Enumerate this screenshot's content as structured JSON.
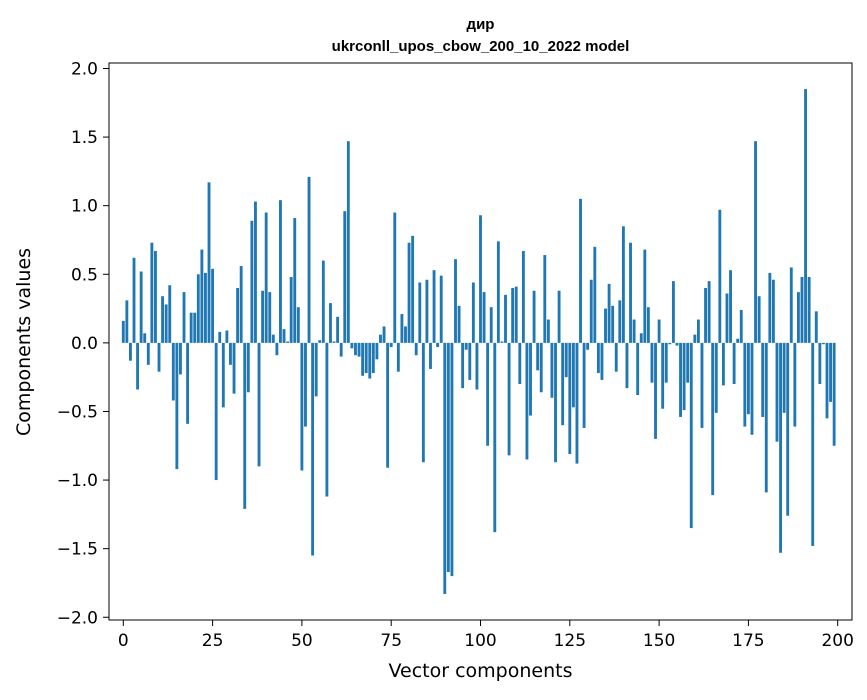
{
  "chart_data": {
    "type": "bar",
    "title": "дир",
    "subtitle": "ukrconll_upos_cbow_200_10_2022 model",
    "xlabel": "Vector components",
    "ylabel": "Components values",
    "xlim": [
      -4,
      204
    ],
    "ylim": [
      -2.02,
      2.04
    ],
    "xticks": [
      0,
      25,
      50,
      75,
      100,
      125,
      150,
      175,
      200
    ],
    "yticks": [
      -2.0,
      -1.5,
      -1.0,
      -0.5,
      0.0,
      0.5,
      1.0,
      1.5,
      2.0
    ],
    "xtick_labels": [
      "0",
      "25",
      "50",
      "75",
      "100",
      "125",
      "150",
      "175",
      "200"
    ],
    "ytick_labels": [
      "−2.0",
      "−1.5",
      "−1.0",
      "−0.5",
      "0.0",
      "0.5",
      "1.0",
      "1.5",
      "2.0"
    ],
    "grid": false,
    "bar_color": "#1f77b4",
    "x": [
      0,
      1,
      2,
      3,
      4,
      5,
      6,
      7,
      8,
      9,
      10,
      11,
      12,
      13,
      14,
      15,
      16,
      17,
      18,
      19,
      20,
      21,
      22,
      23,
      24,
      25,
      26,
      27,
      28,
      29,
      30,
      31,
      32,
      33,
      34,
      35,
      36,
      37,
      38,
      39,
      40,
      41,
      42,
      43,
      44,
      45,
      46,
      47,
      48,
      49,
      50,
      51,
      52,
      53,
      54,
      55,
      56,
      57,
      58,
      59,
      60,
      61,
      62,
      63,
      64,
      65,
      66,
      67,
      68,
      69,
      70,
      71,
      72,
      73,
      74,
      75,
      76,
      77,
      78,
      79,
      80,
      81,
      82,
      83,
      84,
      85,
      86,
      87,
      88,
      89,
      90,
      91,
      92,
      93,
      94,
      95,
      96,
      97,
      98,
      99,
      100,
      101,
      102,
      103,
      104,
      105,
      106,
      107,
      108,
      109,
      110,
      111,
      112,
      113,
      114,
      115,
      116,
      117,
      118,
      119,
      120,
      121,
      122,
      123,
      124,
      125,
      126,
      127,
      128,
      129,
      130,
      131,
      132,
      133,
      134,
      135,
      136,
      137,
      138,
      139,
      140,
      141,
      142,
      143,
      144,
      145,
      146,
      147,
      148,
      149,
      150,
      151,
      152,
      153,
      154,
      155,
      156,
      157,
      158,
      159,
      160,
      161,
      162,
      163,
      164,
      165,
      166,
      167,
      168,
      169,
      170,
      171,
      172,
      173,
      174,
      175,
      176,
      177,
      178,
      179,
      180,
      181,
      182,
      183,
      184,
      185,
      186,
      187,
      188,
      189,
      190,
      191,
      192,
      193,
      194,
      195,
      196,
      197,
      198,
      199
    ],
    "values": [
      0.16,
      0.31,
      -0.13,
      0.62,
      -0.34,
      0.52,
      0.07,
      -0.16,
      0.73,
      0.67,
      -0.21,
      0.34,
      0.28,
      0.42,
      -0.42,
      -0.92,
      -0.23,
      0.37,
      -0.59,
      0.22,
      0.22,
      0.5,
      0.68,
      0.51,
      1.17,
      0.54,
      -1.0,
      0.08,
      -0.47,
      0.09,
      -0.16,
      -0.37,
      0.4,
      0.56,
      -1.21,
      -0.36,
      0.89,
      1.03,
      -0.9,
      0.38,
      0.95,
      0.37,
      0.06,
      -0.09,
      1.04,
      0.1,
      0.01,
      0.48,
      0.91,
      0.26,
      -0.93,
      -0.61,
      1.21,
      -1.55,
      -0.39,
      0.02,
      0.6,
      -1.12,
      0.29,
      0.01,
      0.19,
      -0.1,
      0.96,
      1.47,
      -0.04,
      -0.09,
      -0.1,
      -0.24,
      -0.22,
      -0.26,
      -0.22,
      -0.12,
      0.06,
      0.12,
      -0.91,
      -0.03,
      0.95,
      -0.21,
      0.21,
      0.12,
      0.73,
      0.78,
      -0.09,
      0.44,
      -0.87,
      0.46,
      -0.19,
      0.53,
      -0.03,
      0.49,
      -1.83,
      -1.67,
      -1.7,
      0.61,
      0.27,
      -0.33,
      -0.05,
      -0.27,
      0.44,
      -0.34,
      0.93,
      0.37,
      -0.75,
      0.26,
      -1.38,
      0.74,
      0.01,
      0.35,
      -0.82,
      0.4,
      0.41,
      -0.3,
      0.67,
      -0.85,
      -0.53,
      0.38,
      -0.2,
      -0.36,
      0.64,
      0.17,
      -0.4,
      -0.87,
      0.38,
      -0.6,
      -0.25,
      -0.81,
      -0.47,
      -0.88,
      1.05,
      -0.62,
      -0.05,
      0.46,
      0.7,
      -0.22,
      -0.27,
      0.25,
      0.43,
      0.27,
      -0.21,
      0.31,
      0.85,
      -0.33,
      0.73,
      0.17,
      -0.38,
      0.07,
      0.68,
      0.26,
      -0.29,
      -0.7,
      0.17,
      -0.48,
      -0.29,
      -0.01,
      0.45,
      -0.02,
      -0.54,
      -0.49,
      -0.29,
      -1.35,
      0.06,
      0.17,
      -0.62,
      0.4,
      0.45,
      -1.11,
      -0.51,
      0.97,
      -0.31,
      0.36,
      0.53,
      -0.3,
      0.03,
      0.24,
      -0.61,
      -0.52,
      -0.67,
      1.47,
      0.34,
      -0.54,
      -1.09,
      0.51,
      0.46,
      -0.72,
      -1.53,
      -0.51,
      -1.26,
      0.55,
      -0.61,
      0.37,
      0.48,
      1.85,
      0.48,
      -1.48,
      0.23,
      -0.3,
      -0.01,
      -0.55,
      -0.43,
      -0.75
    ]
  }
}
